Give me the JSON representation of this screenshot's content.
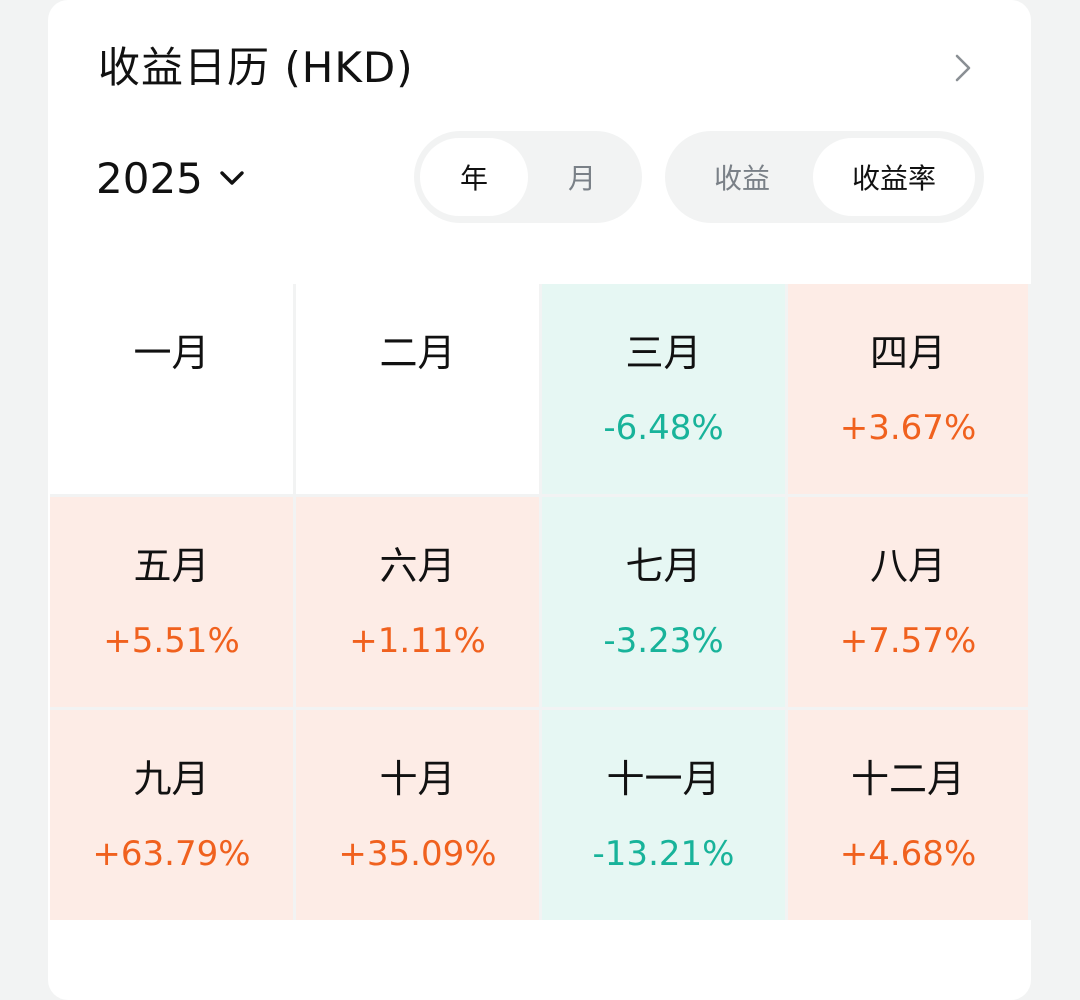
{
  "header": {
    "title": "收益日历 (HKD)",
    "chevron_icon": "chevron-right-icon"
  },
  "year_select": {
    "value": "2025",
    "icon": "chevron-down-icon"
  },
  "period_toggle": {
    "options": [
      "年",
      "月"
    ],
    "selected": "年"
  },
  "metric_toggle": {
    "options": [
      "收益",
      "收益率"
    ],
    "selected": "收益率"
  },
  "colors": {
    "positive": "#f0611e",
    "positive_bg": "#fdece6",
    "negative": "#18b39a",
    "negative_bg": "#e6f7f3"
  },
  "months": [
    {
      "label": "一月",
      "value": "",
      "trend": "none"
    },
    {
      "label": "二月",
      "value": "",
      "trend": "none"
    },
    {
      "label": "三月",
      "value": "-6.48%",
      "trend": "neg"
    },
    {
      "label": "四月",
      "value": "+3.67%",
      "trend": "pos"
    },
    {
      "label": "五月",
      "value": "+5.51%",
      "trend": "pos"
    },
    {
      "label": "六月",
      "value": "+1.11%",
      "trend": "pos"
    },
    {
      "label": "七月",
      "value": "-3.23%",
      "trend": "neg"
    },
    {
      "label": "八月",
      "value": "+7.57%",
      "trend": "pos"
    },
    {
      "label": "九月",
      "value": "+63.79%",
      "trend": "pos"
    },
    {
      "label": "十月",
      "value": "+35.09%",
      "trend": "pos"
    },
    {
      "label": "十一月",
      "value": "-13.21%",
      "trend": "neg"
    },
    {
      "label": "十二月",
      "value": "+4.68%",
      "trend": "pos"
    }
  ]
}
